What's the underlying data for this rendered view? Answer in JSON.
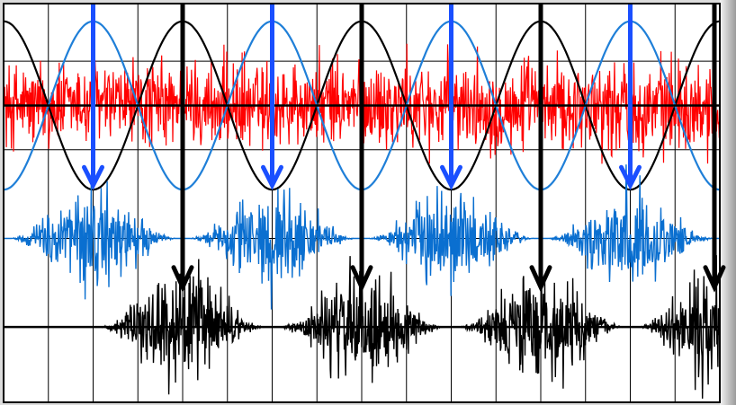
{
  "chart_data": {
    "type": "line",
    "title": "",
    "xlabel": "",
    "ylabel": "",
    "grid": true,
    "legend": "none",
    "x_range": [
      0,
      8
    ],
    "y_range": [
      0,
      4.5
    ],
    "grid_x_step": 0.5,
    "grid_y_step": 1,
    "series": [
      {
        "kind": "cosine",
        "color": "#000000",
        "baseline": 3.35,
        "amplitude": 0.95,
        "period": 2,
        "phase": 0
      },
      {
        "kind": "cosine",
        "color": "#1f7fd8",
        "baseline": 3.35,
        "amplitude": 0.95,
        "period": 2,
        "phase": 1
      },
      {
        "kind": "noise",
        "color": "#ff0000",
        "baseline": 3.35,
        "amplitude": 0.45,
        "envelope": "uniform",
        "x_range": [
          0,
          8
        ]
      },
      {
        "kind": "noise-bursts",
        "color": "#0a6fd0",
        "baseline": 1.85,
        "amplitude": 0.5,
        "burst_centers": [
          1,
          3,
          5,
          7
        ],
        "burst_half_width": 0.95,
        "x_range": [
          0,
          8
        ]
      },
      {
        "kind": "noise-bursts",
        "color": "#000000",
        "baseline": 0.85,
        "amplitude": 0.55,
        "burst_centers": [
          2,
          4,
          6,
          8
        ],
        "burst_half_width": 0.95,
        "x_range": [
          1,
          8
        ]
      }
    ],
    "markers": {
      "blue_arrows": {
        "color": "#1a4fff",
        "x": [
          1,
          3,
          5,
          7
        ],
        "y_from": 4.5,
        "y_to": 2.45
      },
      "black_arrows": {
        "color": "#000000",
        "x": [
          2,
          4,
          6,
          8
        ],
        "y_from": 4.5,
        "y_to": 1.3
      }
    },
    "baselines": [
      {
        "color": "#000000",
        "y": 3.35
      },
      {
        "color": "#000000",
        "y": 0.85
      }
    ]
  }
}
